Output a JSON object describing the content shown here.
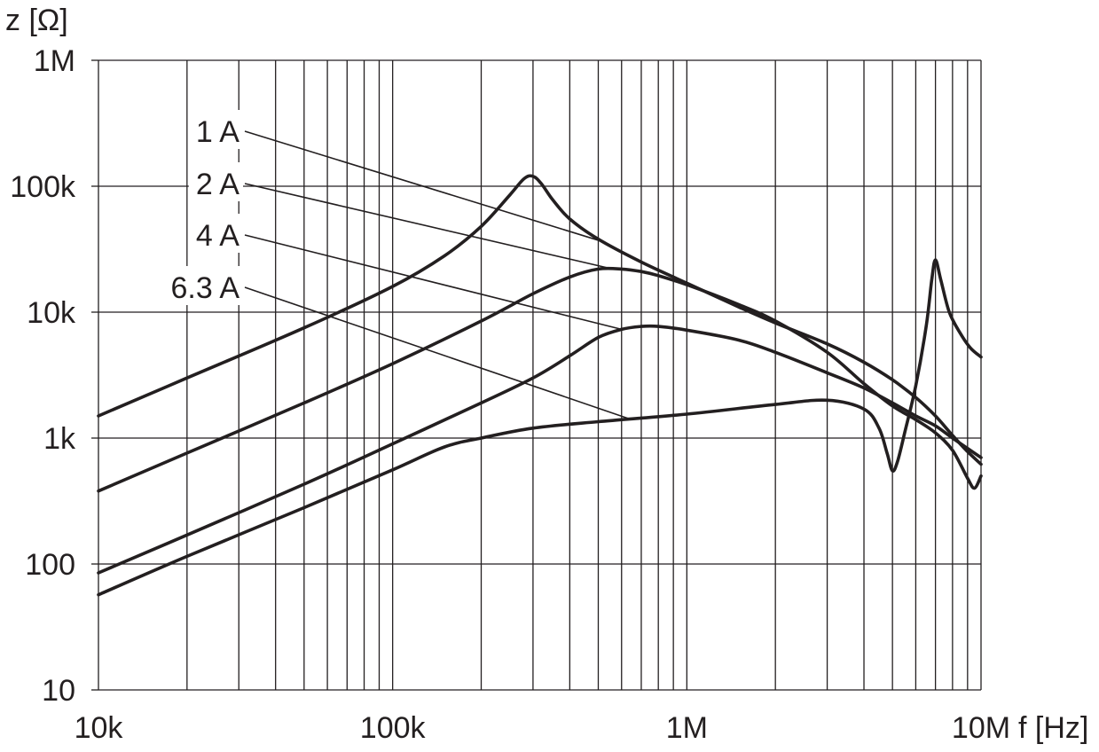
{
  "chart_data": {
    "type": "line",
    "xscale": "log",
    "yscale": "log",
    "xlim": [
      10000,
      10000000
    ],
    "ylim": [
      10,
      1000000
    ],
    "xlabel": "f [Hz]",
    "ylabel": "z [Ω]",
    "x_ticks": [
      {
        "value": 10000,
        "label": "10k"
      },
      {
        "value": 100000,
        "label": "100k"
      },
      {
        "value": 1000000,
        "label": "1M"
      },
      {
        "value": 10000000,
        "label": "10M"
      }
    ],
    "y_ticks": [
      {
        "value": 10,
        "label": "10"
      },
      {
        "value": 100,
        "label": "100"
      },
      {
        "value": 1000,
        "label": "1k"
      },
      {
        "value": 10000,
        "label": "10k"
      },
      {
        "value": 100000,
        "label": "100k"
      },
      {
        "value": 1000000,
        "label": "1M"
      }
    ],
    "grid": true,
    "line_color": "#231f20",
    "series": [
      {
        "name": "1 A",
        "x": [
          10000,
          20000,
          50000,
          100000,
          150000,
          200000,
          250000,
          280000,
          300000,
          320000,
          350000,
          400000,
          500000,
          700000,
          1000000,
          1500000,
          2000000,
          3000000,
          4000000,
          5000000,
          6000000,
          7000000,
          8000000,
          9000000,
          10000000
        ],
        "y": [
          1500,
          3000,
          7500,
          16000,
          28000,
          48000,
          85000,
          115000,
          120000,
          105000,
          78000,
          55000,
          38000,
          25000,
          17000,
          11000,
          8200,
          5600,
          4000,
          2900,
          2100,
          1500,
          1050,
          780,
          620
        ]
      },
      {
        "name": "2 A",
        "x": [
          10000,
          20000,
          50000,
          100000,
          200000,
          300000,
          400000,
          500000,
          600000,
          700000,
          800000,
          1000000,
          1500000,
          2000000,
          3000000,
          4000000,
          5000000,
          6000000,
          7000000,
          8000000,
          9000000,
          9500000,
          10000000
        ],
        "y": [
          380,
          760,
          1900,
          3900,
          8500,
          14000,
          19000,
          22000,
          22000,
          21000,
          19500,
          16500,
          11500,
          8500,
          4800,
          2700,
          1800,
          1400,
          1100,
          800,
          480,
          400,
          500
        ]
      },
      {
        "name": "4 A",
        "x": [
          10000,
          20000,
          50000,
          100000,
          200000,
          300000,
          400000,
          500000,
          600000,
          700000,
          800000,
          1000000,
          1500000,
          2000000,
          3000000,
          4000000,
          5000000,
          6000000,
          7000000,
          8000000,
          10000000
        ],
        "y": [
          85,
          170,
          430,
          900,
          1900,
          3000,
          4500,
          6300,
          7300,
          7700,
          7700,
          7200,
          6000,
          4800,
          3300,
          2500,
          1900,
          1500,
          1250,
          1000,
          700
        ]
      },
      {
        "name": "6.3 A",
        "x": [
          10000,
          20000,
          50000,
          100000,
          150000,
          200000,
          300000,
          500000,
          1000000,
          2000000,
          3000000,
          4000000,
          4500000,
          4800000,
          5000000,
          5200000,
          5500000,
          6000000,
          6500000,
          6800000,
          7000000,
          7300000,
          7800000,
          8500000,
          9200000,
          10000000
        ],
        "y": [
          57,
          115,
          280,
          560,
          850,
          1000,
          1200,
          1350,
          1550,
          1850,
          2000,
          1700,
          1200,
          750,
          550,
          650,
          1100,
          2600,
          7500,
          18000,
          26000,
          18000,
          10000,
          6800,
          5200,
          4400
        ]
      }
    ],
    "legend": {
      "placement": "top-left",
      "entries": [
        "1 A",
        "2 A",
        "4 A",
        "6.3 A"
      ]
    }
  }
}
